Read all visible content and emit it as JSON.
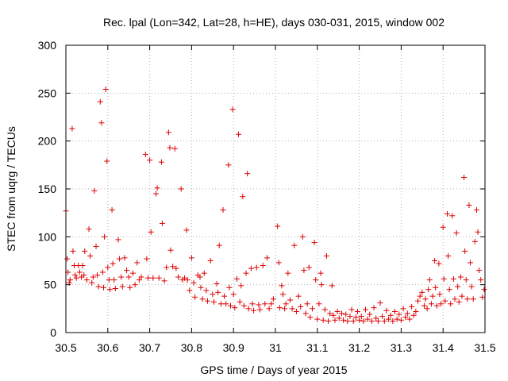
{
  "chart_data": {
    "type": "scatter",
    "title": "Rec. lpal (Lon=342, Lat=28, h=HE), days 030-031, 2015, window 002",
    "xlabel": "GPS time / Days of year 2015",
    "ylabel": "STEC from uqrg / TECUs",
    "xlim": [
      30.5,
      31.5
    ],
    "ylim": [
      0,
      300
    ],
    "xticks": [
      "30.5",
      "30.6",
      "30.7",
      "30.8",
      "30.9",
      "31",
      "31.1",
      "31.2",
      "31.3",
      "31.4",
      "31.5"
    ],
    "yticks": [
      "0",
      "50",
      "100",
      "150",
      "200",
      "250",
      "300"
    ],
    "grid": true,
    "marker_color": "#dd0000",
    "series": [
      {
        "values": [
          [
            30.5,
            127
          ],
          [
            30.503,
            77
          ],
          [
            30.505,
            63
          ],
          [
            30.508,
            52
          ],
          [
            30.51,
            55
          ],
          [
            30.515,
            213
          ],
          [
            30.517,
            85
          ],
          [
            30.52,
            70
          ],
          [
            30.522,
            60
          ],
          [
            30.525,
            57
          ],
          [
            30.53,
            70
          ],
          [
            30.533,
            63
          ],
          [
            30.537,
            58
          ],
          [
            30.54,
            70
          ],
          [
            30.543,
            60
          ],
          [
            30.545,
            85
          ],
          [
            30.55,
            55
          ],
          [
            30.555,
            108
          ],
          [
            30.558,
            80
          ],
          [
            30.562,
            52
          ],
          [
            30.565,
            58
          ],
          [
            30.568,
            148
          ],
          [
            30.572,
            90
          ],
          [
            30.575,
            60
          ],
          [
            30.578,
            48
          ],
          [
            30.582,
            241
          ],
          [
            30.585,
            219
          ],
          [
            30.588,
            63
          ],
          [
            30.59,
            47
          ],
          [
            30.592,
            100
          ],
          [
            30.595,
            254
          ],
          [
            30.598,
            179
          ],
          [
            30.6,
            68
          ],
          [
            30.603,
            55
          ],
          [
            30.605,
            45
          ],
          [
            30.61,
            128
          ],
          [
            30.612,
            72
          ],
          [
            30.615,
            55
          ],
          [
            30.618,
            46
          ],
          [
            30.625,
            97
          ],
          [
            30.628,
            77
          ],
          [
            30.632,
            58
          ],
          [
            30.635,
            48
          ],
          [
            30.64,
            78
          ],
          [
            30.645,
            65
          ],
          [
            30.65,
            58
          ],
          [
            30.653,
            47
          ],
          [
            30.66,
            62
          ],
          [
            30.665,
            50
          ],
          [
            30.67,
            73
          ],
          [
            30.675,
            55
          ],
          [
            30.68,
            58
          ],
          [
            30.69,
            186
          ],
          [
            30.693,
            77
          ],
          [
            30.696,
            57
          ],
          [
            30.7,
            180
          ],
          [
            30.703,
            105
          ],
          [
            30.708,
            57
          ],
          [
            30.715,
            145
          ],
          [
            30.718,
            151
          ],
          [
            30.722,
            57
          ],
          [
            30.728,
            178
          ],
          [
            30.73,
            114
          ],
          [
            30.735,
            54
          ],
          [
            30.74,
            68
          ],
          [
            30.745,
            209
          ],
          [
            30.748,
            193
          ],
          [
            30.75,
            86
          ],
          [
            30.755,
            69
          ],
          [
            30.76,
            192
          ],
          [
            30.763,
            67
          ],
          [
            30.768,
            58
          ],
          [
            30.775,
            150
          ],
          [
            30.778,
            55
          ],
          [
            30.783,
            57
          ],
          [
            30.788,
            107
          ],
          [
            30.79,
            55
          ],
          [
            30.795,
            44
          ],
          [
            30.8,
            78
          ],
          [
            30.805,
            52
          ],
          [
            30.808,
            37
          ],
          [
            30.815,
            60
          ],
          [
            30.82,
            58
          ],
          [
            30.822,
            47
          ],
          [
            30.826,
            35
          ],
          [
            30.83,
            62
          ],
          [
            30.835,
            44
          ],
          [
            30.838,
            33
          ],
          [
            30.845,
            75
          ],
          [
            30.85,
            40
          ],
          [
            30.853,
            32
          ],
          [
            30.86,
            51
          ],
          [
            30.863,
            42
          ],
          [
            30.866,
            91
          ],
          [
            30.87,
            30
          ],
          [
            30.875,
            128
          ],
          [
            30.878,
            38
          ],
          [
            30.882,
            30
          ],
          [
            30.888,
            175
          ],
          [
            30.89,
            47
          ],
          [
            30.893,
            28
          ],
          [
            30.898,
            233
          ],
          [
            30.9,
            40
          ],
          [
            30.903,
            26
          ],
          [
            30.908,
            56
          ],
          [
            30.912,
            207
          ],
          [
            30.915,
            32
          ],
          [
            30.918,
            49
          ],
          [
            30.922,
            142
          ],
          [
            30.925,
            28
          ],
          [
            30.93,
            62
          ],
          [
            30.933,
            166
          ],
          [
            30.936,
            25
          ],
          [
            30.942,
            67
          ],
          [
            30.945,
            30
          ],
          [
            30.948,
            23
          ],
          [
            30.955,
            68
          ],
          [
            30.96,
            29
          ],
          [
            30.963,
            24
          ],
          [
            30.97,
            70
          ],
          [
            30.975,
            30
          ],
          [
            30.98,
            78
          ],
          [
            30.985,
            25
          ],
          [
            30.99,
            30
          ],
          [
            30.995,
            35
          ],
          [
            31.005,
            111
          ],
          [
            31.008,
            73
          ],
          [
            31.01,
            26
          ],
          [
            31.015,
            49
          ],
          [
            31.018,
            40
          ],
          [
            31.022,
            25
          ],
          [
            31.025,
            30
          ],
          [
            31.03,
            62
          ],
          [
            31.035,
            34
          ],
          [
            31.04,
            25
          ],
          [
            31.045,
            91
          ],
          [
            31.05,
            22
          ],
          [
            31.055,
            38
          ],
          [
            31.06,
            27
          ],
          [
            31.065,
            100
          ],
          [
            31.068,
            65
          ],
          [
            31.072,
            20
          ],
          [
            31.076,
            30
          ],
          [
            31.08,
            68
          ],
          [
            31.083,
            16
          ],
          [
            31.088,
            25
          ],
          [
            31.093,
            94
          ],
          [
            31.096,
            55
          ],
          [
            31.1,
            14
          ],
          [
            31.104,
            30
          ],
          [
            31.108,
            62
          ],
          [
            31.11,
            50
          ],
          [
            31.114,
            13
          ],
          [
            31.118,
            24
          ],
          [
            31.122,
            80
          ],
          [
            31.126,
            12
          ],
          [
            31.13,
            20
          ],
          [
            31.135,
            49
          ],
          [
            31.138,
            18
          ],
          [
            31.142,
            13
          ],
          [
            31.148,
            22
          ],
          [
            31.152,
            15
          ],
          [
            31.158,
            20
          ],
          [
            31.162,
            13
          ],
          [
            31.168,
            19
          ],
          [
            31.172,
            12
          ],
          [
            31.178,
            17
          ],
          [
            31.182,
            24
          ],
          [
            31.186,
            12
          ],
          [
            31.192,
            16
          ],
          [
            31.196,
            22
          ],
          [
            31.2,
            13
          ],
          [
            31.205,
            17
          ],
          [
            31.21,
            12
          ],
          [
            31.215,
            24
          ],
          [
            31.22,
            14
          ],
          [
            31.225,
            19
          ],
          [
            31.23,
            12
          ],
          [
            31.235,
            26
          ],
          [
            31.24,
            15
          ],
          [
            31.245,
            12
          ],
          [
            31.25,
            31
          ],
          [
            31.255,
            17
          ],
          [
            31.26,
            12
          ],
          [
            31.265,
            23
          ],
          [
            31.27,
            14
          ],
          [
            31.275,
            18
          ],
          [
            31.28,
            12
          ],
          [
            31.285,
            22
          ],
          [
            31.29,
            14
          ],
          [
            31.295,
            19
          ],
          [
            31.3,
            13
          ],
          [
            31.305,
            25
          ],
          [
            31.31,
            16
          ],
          [
            31.315,
            20
          ],
          [
            31.32,
            14
          ],
          [
            31.325,
            27
          ],
          [
            31.33,
            18
          ],
          [
            31.335,
            22
          ],
          [
            31.34,
            33
          ],
          [
            31.345,
            38
          ],
          [
            31.35,
            42
          ],
          [
            31.355,
            28
          ],
          [
            31.358,
            35
          ],
          [
            31.362,
            25
          ],
          [
            31.365,
            45
          ],
          [
            31.368,
            55
          ],
          [
            31.372,
            30
          ],
          [
            31.375,
            38
          ],
          [
            31.38,
            75
          ],
          [
            31.382,
            47
          ],
          [
            31.385,
            28
          ],
          [
            31.39,
            72
          ],
          [
            31.392,
            40
          ],
          [
            31.395,
            30
          ],
          [
            31.4,
            110
          ],
          [
            31.402,
            56
          ],
          [
            31.405,
            33
          ],
          [
            31.41,
            124
          ],
          [
            31.412,
            80
          ],
          [
            31.415,
            45
          ],
          [
            31.418,
            30
          ],
          [
            31.422,
            122
          ],
          [
            31.425,
            56
          ],
          [
            31.428,
            35
          ],
          [
            31.432,
            104
          ],
          [
            31.435,
            48
          ],
          [
            31.438,
            32
          ],
          [
            31.442,
            58
          ],
          [
            31.445,
            38
          ],
          [
            31.45,
            162
          ],
          [
            31.452,
            85
          ],
          [
            31.455,
            55
          ],
          [
            31.458,
            35
          ],
          [
            31.462,
            133
          ],
          [
            31.465,
            73
          ],
          [
            31.468,
            48
          ],
          [
            31.472,
            35
          ],
          [
            31.476,
            95
          ],
          [
            31.48,
            128
          ],
          [
            31.483,
            105
          ],
          [
            31.486,
            65
          ],
          [
            31.49,
            55
          ],
          [
            31.494,
            37
          ],
          [
            31.498,
            45
          ]
        ]
      }
    ]
  }
}
